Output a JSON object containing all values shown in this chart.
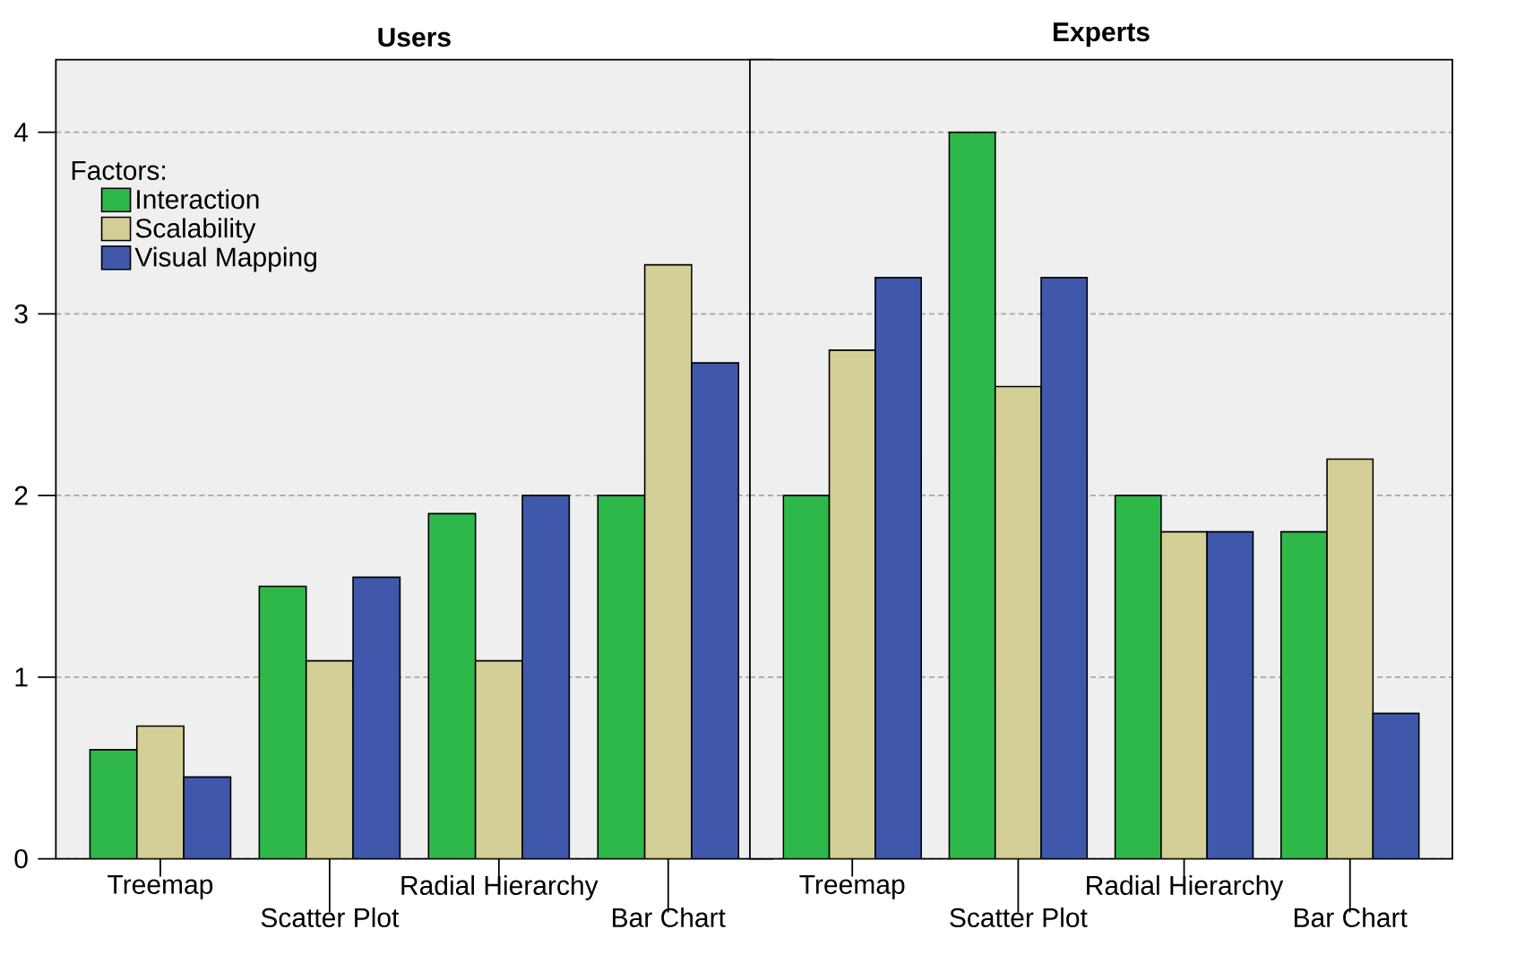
{
  "chart_data": [
    {
      "type": "bar",
      "title": "Users",
      "categories": [
        "Treemap",
        "Scatter Plot",
        "Radial Hierarchy",
        "Bar Chart"
      ],
      "legend_title": "Factors:",
      "legend": "top left",
      "grid": "y",
      "ylim": [
        0,
        4.4
      ],
      "yticks": [
        0,
        1,
        2,
        3,
        4
      ],
      "series": [
        {
          "name": "Interaction",
          "color": "#2fb84a",
          "values": [
            0.6,
            1.5,
            1.9,
            2.0
          ]
        },
        {
          "name": "Scalability",
          "color": "#d4cf96",
          "values": [
            0.73,
            1.09,
            1.09,
            3.27
          ]
        },
        {
          "name": "Visual Mapping",
          "color": "#3f58ab",
          "values": [
            0.45,
            1.55,
            2.0,
            2.73
          ]
        }
      ]
    },
    {
      "type": "bar",
      "title": "Experts",
      "categories": [
        "Treemap",
        "Scatter Plot",
        "Radial Hierarchy",
        "Bar Chart"
      ],
      "grid": "y",
      "tick_labels": "x",
      "ylim": [
        0,
        4.4
      ],
      "yticks": [
        0,
        1,
        2,
        3,
        4
      ],
      "series": [
        {
          "color": "#2fb84a",
          "values": [
            2.0,
            4.0,
            2.0,
            1.8
          ]
        },
        {
          "color": "#d4cf96",
          "values": [
            2.8,
            2.6,
            1.8,
            2.2
          ]
        },
        {
          "color": "#3f58ab",
          "values": [
            3.2,
            3.2,
            1.8,
            0.8
          ]
        }
      ]
    }
  ]
}
